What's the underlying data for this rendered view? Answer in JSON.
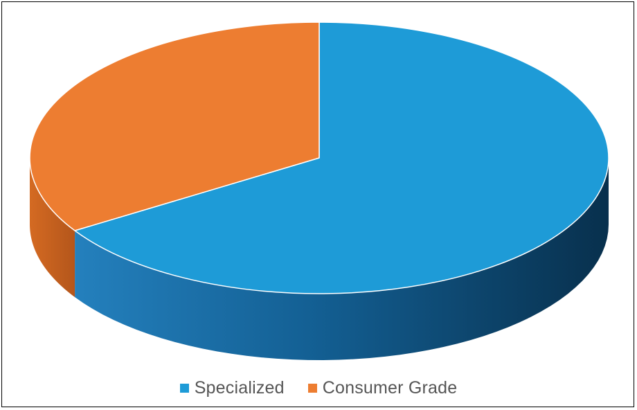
{
  "chart_data": {
    "type": "pie",
    "title": "",
    "three_d": true,
    "legend_position": "bottom",
    "series": [
      {
        "name": "Specialized",
        "value": 66,
        "color": "#1E9BD7",
        "side_color": "#0F5B86"
      },
      {
        "name": "Consumer Grade",
        "value": 34,
        "color": "#ED7D31",
        "side_color": "#B4561B"
      }
    ]
  },
  "legend": {
    "items": [
      {
        "label": "Specialized",
        "color": "#1E9BD7"
      },
      {
        "label": "Consumer Grade",
        "color": "#ED7D31"
      }
    ]
  }
}
